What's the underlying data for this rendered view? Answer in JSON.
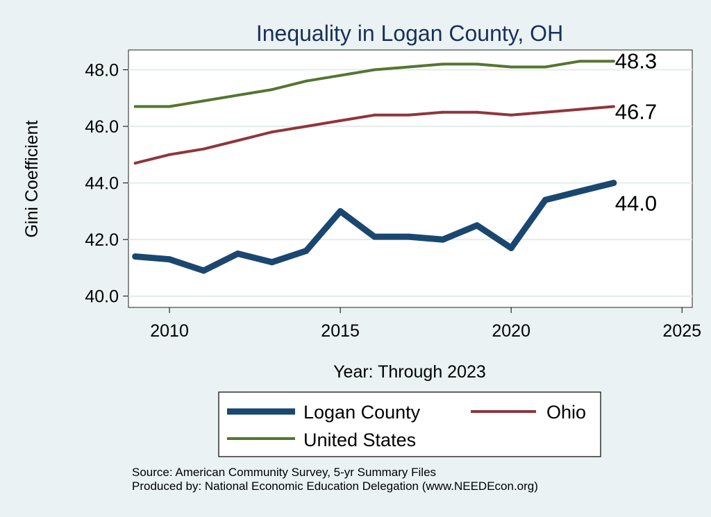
{
  "chart_data": {
    "type": "line",
    "title": "Inequality in Logan County, OH",
    "xlabel": "Year: Through 2023",
    "ylabel": "Gini Coefficient",
    "xlim": [
      2008.8,
      2025.3
    ],
    "ylim": [
      39.6,
      48.7
    ],
    "x_ticks": [
      "2010",
      "2015",
      "2020",
      "2025"
    ],
    "y_ticks": [
      "40.0",
      "42.0",
      "44.0",
      "46.0",
      "48.0"
    ],
    "x": [
      2009,
      2010,
      2011,
      2012,
      2013,
      2014,
      2015,
      2016,
      2017,
      2018,
      2019,
      2020,
      2021,
      2022,
      2023
    ],
    "series": [
      {
        "name": "Logan County",
        "color": "#1a476f",
        "values": [
          41.4,
          41.3,
          40.9,
          41.5,
          41.2,
          41.6,
          43.0,
          42.1,
          42.1,
          42.0,
          42.5,
          41.7,
          43.4,
          43.7,
          44.0
        ],
        "end_label": "44.0"
      },
      {
        "name": "Ohio",
        "color": "#90353b",
        "values": [
          44.7,
          45.0,
          45.2,
          45.5,
          45.8,
          46.0,
          46.2,
          46.4,
          46.4,
          46.5,
          46.5,
          46.4,
          46.5,
          46.6,
          46.7
        ],
        "end_label": "46.7"
      },
      {
        "name": "United States",
        "color": "#55752f",
        "values": [
          46.7,
          46.7,
          46.9,
          47.1,
          47.3,
          47.6,
          47.8,
          48.0,
          48.1,
          48.2,
          48.2,
          48.1,
          48.1,
          48.3,
          48.3
        ],
        "end_label": "48.3"
      }
    ],
    "legend": [
      "Logan County",
      "Ohio",
      "United States"
    ],
    "grid": true
  },
  "source_note": "Source: American Community Survey, 5-yr Summary Files",
  "produced_note": "Produced by: National Economic Education Delegation (www.NEEDEcon.org)"
}
